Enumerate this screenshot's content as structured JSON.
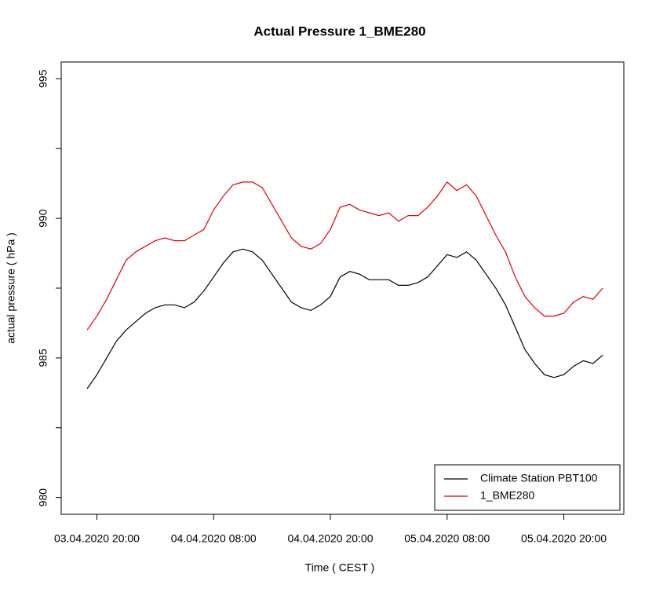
{
  "chart_data": {
    "type": "line",
    "title": "Actual Pressure 1_BME280",
    "x_label": "Time ( CEST )",
    "y_label": "actual pressure ( hPa )",
    "x": [
      "03.04.2020 19:00",
      "03.04.2020 20:00",
      "03.04.2020 21:00",
      "03.04.2020 22:00",
      "03.04.2020 23:00",
      "04.04.2020 00:00",
      "04.04.2020 01:00",
      "04.04.2020 02:00",
      "04.04.2020 03:00",
      "04.04.2020 04:00",
      "04.04.2020 05:00",
      "04.04.2020 06:00",
      "04.04.2020 07:00",
      "04.04.2020 08:00",
      "04.04.2020 09:00",
      "04.04.2020 10:00",
      "04.04.2020 11:00",
      "04.04.2020 12:00",
      "04.04.2020 13:00",
      "04.04.2020 14:00",
      "04.04.2020 15:00",
      "04.04.2020 16:00",
      "04.04.2020 17:00",
      "04.04.2020 18:00",
      "04.04.2020 19:00",
      "04.04.2020 20:00",
      "04.04.2020 21:00",
      "04.04.2020 22:00",
      "04.04.2020 23:00",
      "05.04.2020 00:00",
      "05.04.2020 01:00",
      "05.04.2020 02:00",
      "05.04.2020 03:00",
      "05.04.2020 04:00",
      "05.04.2020 05:00",
      "05.04.2020 06:00",
      "05.04.2020 07:00",
      "05.04.2020 08:00",
      "05.04.2020 09:00",
      "05.04.2020 10:00",
      "05.04.2020 11:00",
      "05.04.2020 12:00",
      "05.04.2020 13:00",
      "05.04.2020 14:00",
      "05.04.2020 15:00",
      "05.04.2020 16:00",
      "05.04.2020 17:00",
      "05.04.2020 18:00",
      "05.04.2020 19:00",
      "05.04.2020 20:00",
      "05.04.2020 21:00",
      "05.04.2020 22:00",
      "05.04.2020 23:00",
      "06.04.2020 00:00"
    ],
    "series": [
      {
        "name": "Climate Station PBT100",
        "color": "#000000",
        "values": [
          983.9,
          984.4,
          985.0,
          985.6,
          986.0,
          986.3,
          986.6,
          986.8,
          986.9,
          986.9,
          986.8,
          987.0,
          987.4,
          987.9,
          988.4,
          988.8,
          988.9,
          988.8,
          988.5,
          988.0,
          987.5,
          987.0,
          986.8,
          986.7,
          986.9,
          987.2,
          987.9,
          988.1,
          988.0,
          987.8,
          987.8,
          987.8,
          987.6,
          987.6,
          987.7,
          987.9,
          988.3,
          988.7,
          988.6,
          988.8,
          988.5,
          988.0,
          987.5,
          986.9,
          986.1,
          985.3,
          984.8,
          984.4,
          984.3,
          984.4,
          984.7,
          984.9,
          984.8,
          985.1
        ]
      },
      {
        "name": "1_BME280",
        "color": "#e00000",
        "values": [
          986.0,
          986.5,
          987.1,
          987.8,
          988.5,
          988.8,
          989.0,
          989.2,
          989.3,
          989.2,
          989.2,
          989.4,
          989.6,
          990.3,
          990.8,
          991.2,
          991.3,
          991.3,
          991.1,
          990.5,
          989.9,
          989.3,
          989.0,
          988.9,
          989.1,
          989.6,
          990.4,
          990.5,
          990.3,
          990.2,
          990.1,
          990.2,
          989.9,
          990.1,
          990.1,
          990.4,
          990.8,
          991.3,
          991.0,
          991.2,
          990.8,
          990.1,
          989.4,
          988.8,
          987.9,
          987.2,
          986.8,
          986.5,
          986.5,
          986.6,
          987.0,
          987.2,
          987.1,
          987.5
        ]
      }
    ],
    "xlim": [
      "03.04.2020 16:20",
      "06.04.2020 02:10"
    ],
    "xticks": [
      "03.04.2020 20:00",
      "04.04.2020 08:00",
      "04.04.2020 20:00",
      "05.04.2020 08:00",
      "05.04.2020 20:00"
    ],
    "ylim": [
      979.4,
      995.6
    ],
    "yticks": [
      980,
      985,
      990,
      995
    ],
    "minor_yticks": [
      982.5,
      987.5,
      992.5
    ],
    "grid": false,
    "legend": "bottomright"
  }
}
